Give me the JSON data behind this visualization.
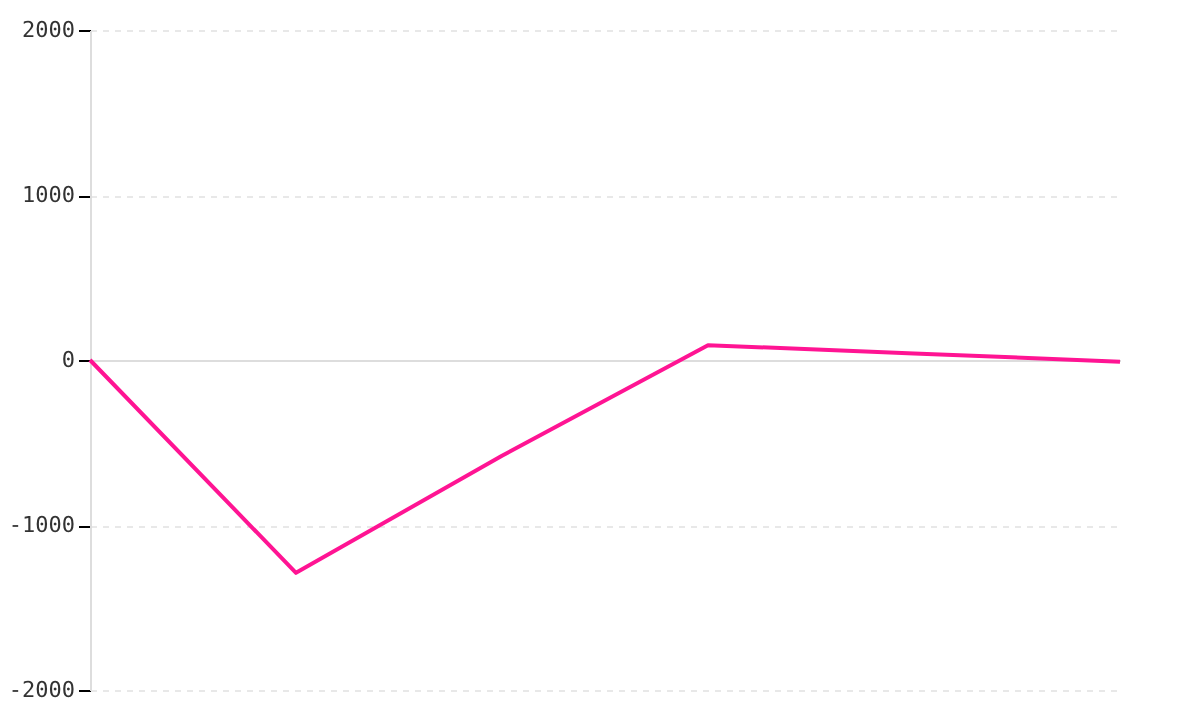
{
  "chart_data": {
    "type": "line",
    "categories": [
      null,
      null,
      null,
      null,
      null,
      null
    ],
    "series": [
      {
        "color": "#ff1493",
        "values": [
          0,
          -1290,
          -580,
          90,
          40,
          -10
        ]
      }
    ],
    "ylim": [
      -2000,
      2000
    ],
    "yticks": [
      -2000,
      -1000,
      0,
      1000,
      2000
    ],
    "grid": "y",
    "tick_labels": "y",
    "marker": "none",
    "line_style": "solid"
  }
}
